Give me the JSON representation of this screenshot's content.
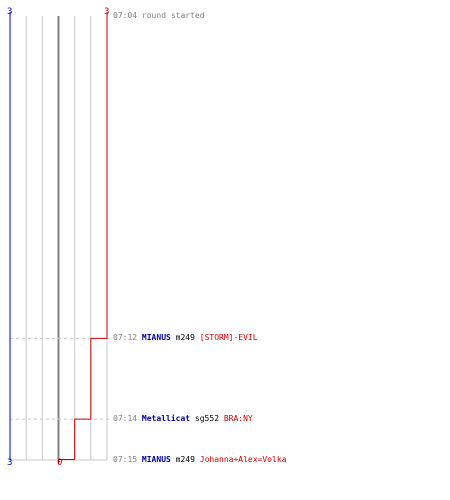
{
  "chart_data": {
    "type": "line",
    "title": "",
    "y_ticks": [
      -3,
      -2,
      -1,
      0,
      1,
      2,
      3
    ],
    "series": [
      {
        "color": "#cc0000",
        "points": [
          {
            "time": "07:04",
            "score": 3
          },
          {
            "time": "07:12",
            "score": 2
          },
          {
            "time": "07:14",
            "score": 1
          },
          {
            "time": "07:15",
            "score": 0
          }
        ]
      }
    ],
    "axis_labels": {
      "top_left": "3",
      "top_right": "3",
      "bottom_left": "3",
      "bottom_center": "0"
    },
    "colors": {
      "blue": "#0000cc",
      "red": "#cc0000",
      "grid": "#c8c8c8",
      "center": "#808080",
      "dash": "#c8c8c8"
    }
  },
  "events": [
    {
      "time": "07:04",
      "message": "round started"
    },
    {
      "time": "07:12",
      "killer": "MIANUS",
      "killer_color": "#000099",
      "weapon": "m249",
      "victim": "[STORM]-EVIL",
      "victim_color": "#cc0000"
    },
    {
      "time": "07:14",
      "killer": "Metallicat",
      "killer_color": "#000099",
      "weapon": "sg552",
      "victim": "BRA:NY",
      "victim_color": "#cc0000"
    },
    {
      "time": "07:15",
      "killer": "MIANUS",
      "killer_color": "#000099",
      "weapon": "m249",
      "victim": "Johanna+Alex=Volka",
      "victim_color": "#cc0000"
    }
  ]
}
